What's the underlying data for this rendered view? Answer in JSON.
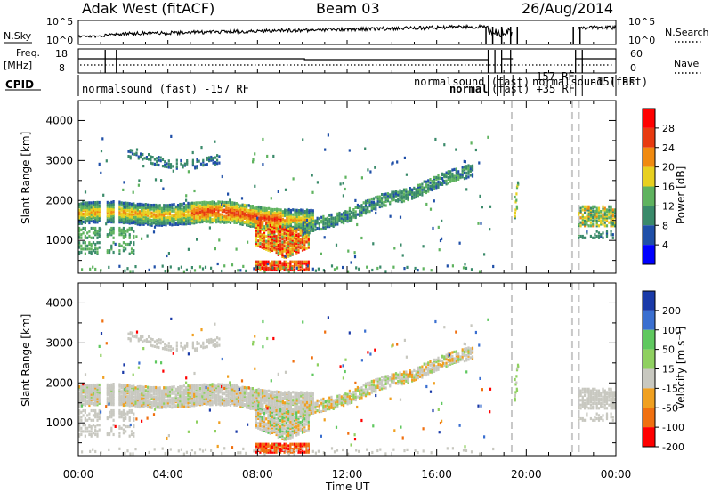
{
  "header": {
    "station": "Adak West (fitACF)",
    "beam": "Beam 03",
    "date": "26/Aug/2014"
  },
  "summary_panels": {
    "nsky_label": "N.Sky",
    "nsearch_label": "N.Search",
    "noise_ticks": [
      "10^5",
      "10^0"
    ],
    "freq_label": "Freq.",
    "freq_unit": "[MHz]",
    "freq_ticks": [
      "18",
      "8"
    ],
    "nave_label": "Nave",
    "nave_ticks": [
      "60",
      "0"
    ],
    "cpid_label": "CPID",
    "cpid_entries": [
      "normalsound (fast) -157 RF",
      "normalsound (fast)",
      "normal",
      "(fast) +35 RF",
      "normalsound (fast)",
      "-157 RF",
      "-151 RF"
    ]
  },
  "colors": {
    "power_scale": [
      "#0000ff",
      "#1f4fa8",
      "#3a8a6a",
      "#5fb35f",
      "#e8d020",
      "#f08a10",
      "#e83a10",
      "#ff0000"
    ],
    "velocity_scale": [
      "#1a3aa8",
      "#3a6fd0",
      "#5fc85f",
      "#8fd060",
      "#c8c8c0",
      "#f0a020",
      "#f07010",
      "#ff0000"
    ]
  },
  "chart_data": [
    {
      "type": "heatmap",
      "title": "",
      "xlabel": "",
      "ylabel": "Slant Range [km]",
      "xlim": [
        "00:00",
        "24:00"
      ],
      "ylim": [
        180,
        4500
      ],
      "yticks": [
        "1000",
        "2000",
        "3000",
        "4000"
      ],
      "xticks": [
        "00:00",
        "04:00",
        "08:00",
        "12:00",
        "16:00",
        "20:00",
        "00:00"
      ],
      "colorbar_label": "Power [dB]",
      "colorbar_ticks": [
        "4",
        "8",
        "12",
        "16",
        "20",
        "24",
        "28"
      ],
      "colorbar_range": [
        0,
        30
      ],
      "features": [
        {
          "name": "main band",
          "start_hour": 0.0,
          "end_hour": 10.5,
          "range_km": [
            1550,
            1900
          ],
          "power_db": 18
        },
        {
          "name": "rising band",
          "start_hour": 10.0,
          "end_hour": 17.5,
          "range_km": [
            1200,
            2950
          ],
          "power_db": 10
        },
        {
          "name": "midday enhancement",
          "start_hour": 8.0,
          "end_hour": 10.3,
          "range_km": [
            500,
            1300
          ],
          "power_db": 22
        }
      ]
    },
    {
      "type": "heatmap",
      "title": "",
      "xlabel": "Time UT",
      "ylabel": "Slant Range [km]",
      "xlim": [
        "00:00",
        "24:00"
      ],
      "ylim": [
        180,
        4500
      ],
      "yticks": [
        "1000",
        "2000",
        "3000",
        "4000"
      ],
      "xticks": [
        "00:00",
        "04:00",
        "08:00",
        "12:00",
        "16:00",
        "20:00",
        "00:00"
      ],
      "colorbar_label": "Velocity [m s⁻¹]",
      "colorbar_ticks": [
        "200",
        "100",
        "50",
        "15",
        "-15",
        "-50",
        "-100",
        "-200"
      ],
      "colorbar_range": [
        -250,
        250
      ]
    }
  ]
}
